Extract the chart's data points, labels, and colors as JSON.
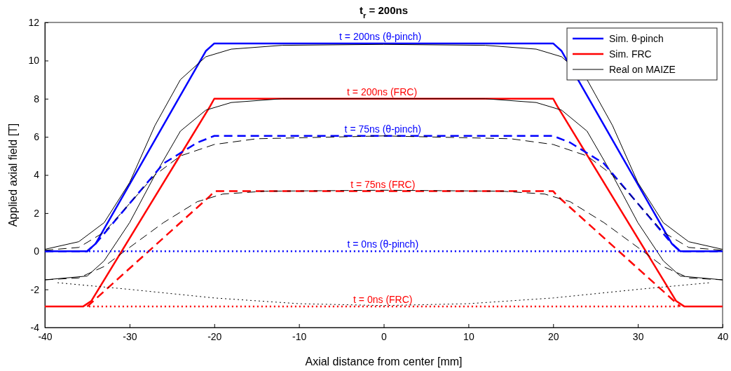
{
  "chart_data": {
    "type": "line",
    "title": "t$_{r}$ = 200ns",
    "xlabel": "Axial distance from center [mm]",
    "ylabel": "Applied axial field [T]",
    "xlim": [
      -40,
      40
    ],
    "xticks": [
      -40,
      -30,
      -20,
      -10,
      0,
      10,
      20,
      30,
      40
    ],
    "ylim": [
      -4,
      12
    ],
    "yticks": [
      -4,
      -2,
      0,
      2,
      4,
      6,
      8,
      10,
      12
    ],
    "grid": false,
    "legend": "top right",
    "marker": "none",
    "series": [
      {
        "name": "Sim. θ-pinch",
        "color": "#0000ff",
        "line_style": "solid",
        "x": [
          -40,
          -35,
          -34,
          -21,
          -20,
          20,
          21,
          34,
          35,
          40
        ],
        "values": [
          0,
          0,
          0.4,
          10.5,
          10.9,
          10.9,
          10.5,
          0.4,
          0,
          0
        ]
      },
      {
        "name": "Sim. FRC",
        "color": "#ff0000",
        "line_style": "solid",
        "x": [
          -40,
          -35.5,
          -34.5,
          -20.5,
          -20,
          20,
          20.5,
          34.5,
          35.5,
          40
        ],
        "values": [
          -2.9,
          -2.9,
          -2.6,
          7.6,
          8,
          8,
          7.6,
          -2.6,
          -2.9,
          -2.9
        ]
      },
      {
        "name": "Real on MAIZE",
        "color": "#000000",
        "line_style": "solid",
        "x": [
          -40,
          -36,
          -33,
          -30,
          -27,
          -24,
          -21,
          -18,
          -12,
          0,
          12,
          18,
          21,
          24,
          27,
          30,
          33,
          36,
          40
        ],
        "values": [
          0.1,
          0.5,
          1.5,
          3.6,
          6.6,
          9,
          10.2,
          10.6,
          10.8,
          10.85,
          10.8,
          10.6,
          10.2,
          9,
          6.6,
          3.6,
          1.5,
          0.5,
          0.1
        ]
      },
      {
        "color": "#000000",
        "line_style": "solid",
        "x": [
          -40,
          -35,
          -33,
          -30,
          -27,
          -24,
          -21,
          -18,
          -12,
          12,
          18,
          21,
          24,
          27,
          30,
          33,
          35,
          40
        ],
        "values": [
          -1.5,
          -1.3,
          -0.5,
          1.5,
          4,
          6.3,
          7.4,
          7.8,
          8,
          8,
          7.8,
          7.4,
          6.3,
          4,
          1.5,
          -0.5,
          -1.3,
          -1.5
        ]
      },
      {
        "color": "#0000ff",
        "line_style": "dashed",
        "x": [
          -40,
          -35,
          -34,
          -26,
          -22,
          -20,
          20,
          22,
          26,
          34,
          35,
          40
        ],
        "values": [
          0,
          0,
          0.4,
          4.6,
          5.7,
          6.05,
          6.05,
          5.7,
          4.6,
          0.4,
          0,
          0
        ]
      },
      {
        "color": "#ff0000",
        "line_style": "dashed",
        "x": [
          -35,
          -34,
          -20.5,
          -20,
          20,
          20.5,
          34,
          35
        ],
        "values": [
          -2.9,
          -2.5,
          2.9,
          3.15,
          3.15,
          2.9,
          -2.5,
          -2.9
        ]
      },
      {
        "color": "#000000",
        "line_style": "dashed",
        "x": [
          -40,
          -36,
          -33,
          -30,
          -27,
          -24,
          -20,
          -15,
          0,
          15,
          20,
          24,
          27,
          30,
          33,
          36,
          40
        ],
        "values": [
          0.05,
          0.2,
          1,
          2.5,
          4,
          5,
          5.6,
          5.9,
          6.05,
          5.9,
          5.6,
          5,
          4,
          2.5,
          1,
          0.2,
          0.05
        ]
      },
      {
        "color": "#000000",
        "line_style": "dashed",
        "x": [
          -40,
          -36,
          -33,
          -30,
          -26,
          -22,
          -19,
          -14,
          0,
          14,
          19,
          22,
          26,
          30,
          33,
          36,
          40
        ],
        "values": [
          -1.5,
          -1.4,
          -0.8,
          0.2,
          1.5,
          2.6,
          3,
          3.15,
          3.2,
          3.15,
          3,
          2.6,
          1.5,
          0.2,
          -0.8,
          -1.4,
          -1.5
        ]
      },
      {
        "color": "#0000ff",
        "line_style": "dotted",
        "x": [
          -34.8,
          34.8
        ],
        "values": [
          0,
          0
        ]
      },
      {
        "color": "#ff0000",
        "line_style": "dotted",
        "x": [
          -34.8,
          34.8
        ],
        "values": [
          -2.9,
          -2.9
        ]
      },
      {
        "color": "#000000",
        "line_style": "dotted",
        "x": [
          -38.5,
          -30,
          -20,
          -10,
          0,
          10,
          20,
          30,
          38.5
        ],
        "values": [
          -1.65,
          -2.0,
          -2.45,
          -2.75,
          -2.85,
          -2.75,
          -2.45,
          -2.0,
          -1.65
        ]
      }
    ],
    "annotations": [
      {
        "text": "t = 200ns (θ-pinch)",
        "x": -0.4,
        "y": 10.9
      },
      {
        "text": "t = 200ns (FRC)",
        "x": -0.2,
        "y": 8
      },
      {
        "text": "t = 75ns (θ-pinch)",
        "x": -0.1,
        "y": 6.05
      },
      {
        "text": "t = 75ns (FRC)",
        "x": -0.1,
        "y": 3.15
      },
      {
        "text": "t = 0ns (θ-pinch)",
        "x": -0.1,
        "y": 0
      },
      {
        "text": "t = 0ns (FRC)",
        "x": -0.1,
        "y": -2.9
      }
    ]
  }
}
